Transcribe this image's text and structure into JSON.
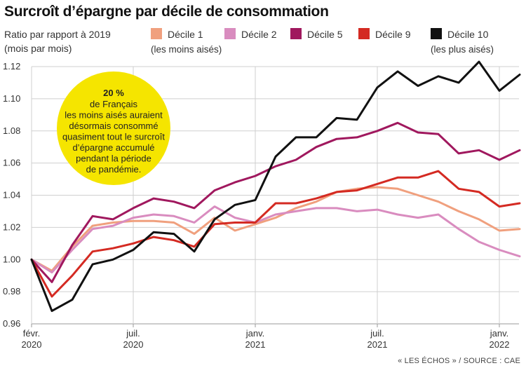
{
  "title": "Surcroît d’épargne par décile de consommation",
  "subtitle_line1": "Ratio par rapport à 2019",
  "subtitle_line2": "(mois par mois)",
  "legend": {
    "d1": "Décile 1",
    "d1_note": "(les moins aisés)",
    "d2": "Décile 2",
    "d5": "Décile 5",
    "d9": "Décile 9",
    "d10": "Décile 10",
    "d10_note": "(les plus aisés)"
  },
  "annotation": {
    "headline": "20 %",
    "lines": [
      "de Français",
      "les moins aisés auraient",
      "désormais consommé",
      "quasiment tout le surcroît",
      "d’épargne accumulé",
      "pendant la période",
      "de pandémie."
    ]
  },
  "source": "« LES ÉCHOS » / SOURCE : CAE",
  "chart_data": {
    "type": "line",
    "x": [
      "2020-02",
      "2020-03",
      "2020-04",
      "2020-05",
      "2020-06",
      "2020-07",
      "2020-08",
      "2020-09",
      "2020-10",
      "2020-11",
      "2020-12",
      "2021-01",
      "2021-02",
      "2021-03",
      "2021-04",
      "2021-05",
      "2021-06",
      "2021-07",
      "2021-08",
      "2021-09",
      "2021-10",
      "2021-11",
      "2021-12",
      "2022-01",
      "2022-02"
    ],
    "x_tick_labels": [
      {
        "month": "2020-02",
        "line1": "févr.",
        "line2": "2020"
      },
      {
        "month": "2020-07",
        "line1": "juil.",
        "line2": "2020"
      },
      {
        "month": "2021-01",
        "line1": "janv.",
        "line2": "2021"
      },
      {
        "month": "2021-07",
        "line1": "juil.",
        "line2": "2021"
      },
      {
        "month": "2022-01",
        "line1": "janv.",
        "line2": "2022"
      }
    ],
    "ylim": [
      0.96,
      1.12
    ],
    "yticks": [
      "0.96",
      "0.98",
      "1.00",
      "1.02",
      "1.04",
      "1.06",
      "1.08",
      "1.10",
      "1.12"
    ],
    "grid": true,
    "series": [
      {
        "name": "Décile 1",
        "color": "#f0a07e",
        "values": [
          1.0,
          0.993,
          1.008,
          1.021,
          1.023,
          1.024,
          1.024,
          1.023,
          1.016,
          1.026,
          1.018,
          1.022,
          1.026,
          1.032,
          1.036,
          1.042,
          1.044,
          1.045,
          1.044,
          1.04,
          1.036,
          1.03,
          1.025,
          1.018,
          1.019
        ]
      },
      {
        "name": "Décile 2",
        "color": "#d98cbf",
        "values": [
          1.0,
          0.992,
          1.006,
          1.019,
          1.021,
          1.026,
          1.028,
          1.027,
          1.023,
          1.033,
          1.026,
          1.023,
          1.028,
          1.03,
          1.032,
          1.032,
          1.03,
          1.031,
          1.028,
          1.026,
          1.028,
          1.019,
          1.011,
          1.006,
          1.002
        ]
      },
      {
        "name": "Décile 5",
        "color": "#a0185e",
        "values": [
          1.0,
          0.986,
          1.009,
          1.027,
          1.025,
          1.032,
          1.038,
          1.036,
          1.032,
          1.043,
          1.048,
          1.052,
          1.058,
          1.062,
          1.07,
          1.075,
          1.076,
          1.08,
          1.085,
          1.079,
          1.078,
          1.066,
          1.068,
          1.062,
          1.068
        ]
      },
      {
        "name": "Décile 9",
        "color": "#d42a22",
        "values": [
          1.0,
          0.977,
          0.99,
          1.005,
          1.007,
          1.01,
          1.014,
          1.012,
          1.008,
          1.022,
          1.023,
          1.023,
          1.035,
          1.035,
          1.038,
          1.042,
          1.043,
          1.047,
          1.051,
          1.051,
          1.055,
          1.044,
          1.042,
          1.033,
          1.035
        ]
      },
      {
        "name": "Décile 10",
        "color": "#111111",
        "values": [
          1.0,
          0.968,
          0.975,
          0.997,
          1.0,
          1.006,
          1.017,
          1.016,
          1.005,
          1.025,
          1.034,
          1.037,
          1.064,
          1.076,
          1.076,
          1.088,
          1.087,
          1.107,
          1.117,
          1.108,
          1.114,
          1.11,
          1.123,
          1.105,
          1.115
        ]
      }
    ]
  }
}
